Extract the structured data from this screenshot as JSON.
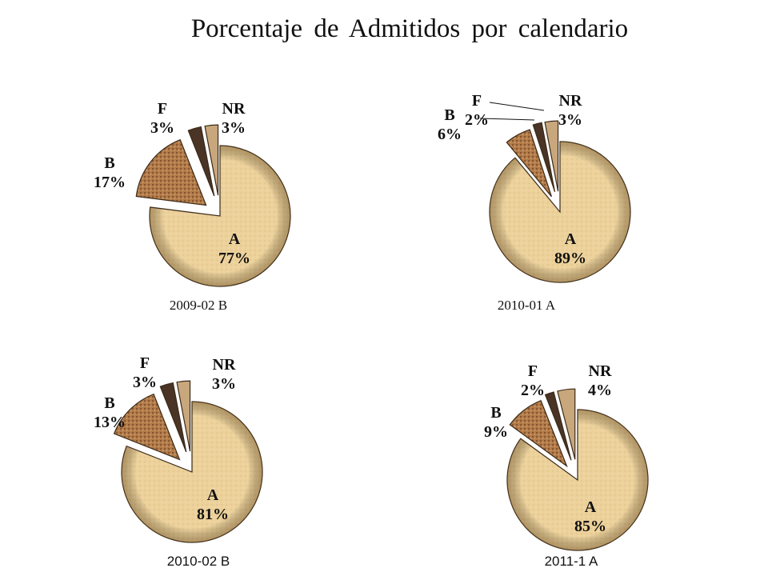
{
  "title": "Porcentaje de Admitidos por calendario",
  "colors": {
    "A": "#e8c98e",
    "B": "#a86e3e",
    "F": "#4a3426",
    "NR": "#c9a77c"
  },
  "chart_data": [
    {
      "type": "pie",
      "caption": "2009-02 B",
      "slices": [
        {
          "label": "A",
          "pct": "77%",
          "value": 77
        },
        {
          "label": "B",
          "pct": "17%",
          "value": 17
        },
        {
          "label": "F",
          "pct": "3%",
          "value": 3
        },
        {
          "label": "NR",
          "pct": "3%",
          "value": 3
        }
      ]
    },
    {
      "type": "pie",
      "caption": "2010-01 A",
      "slices": [
        {
          "label": "A",
          "pct": "89%",
          "value": 89
        },
        {
          "label": "B",
          "pct": "6%",
          "value": 6
        },
        {
          "label": "F",
          "pct": "2%",
          "value": 2
        },
        {
          "label": "NR",
          "pct": "3%",
          "value": 3
        }
      ]
    },
    {
      "type": "pie",
      "caption": "2010-02 B",
      "slices": [
        {
          "label": "A",
          "pct": "81%",
          "value": 81
        },
        {
          "label": "B",
          "pct": "13%",
          "value": 13
        },
        {
          "label": "F",
          "pct": "3%",
          "value": 3
        },
        {
          "label": "NR",
          "pct": "3%",
          "value": 3
        }
      ]
    },
    {
      "type": "pie",
      "caption": "2011-1  A",
      "slices": [
        {
          "label": "A",
          "pct": "85%",
          "value": 85
        },
        {
          "label": "B",
          "pct": "9%",
          "value": 9
        },
        {
          "label": "F",
          "pct": "2%",
          "value": 2
        },
        {
          "label": "NR",
          "pct": "4%",
          "value": 4
        }
      ]
    }
  ]
}
